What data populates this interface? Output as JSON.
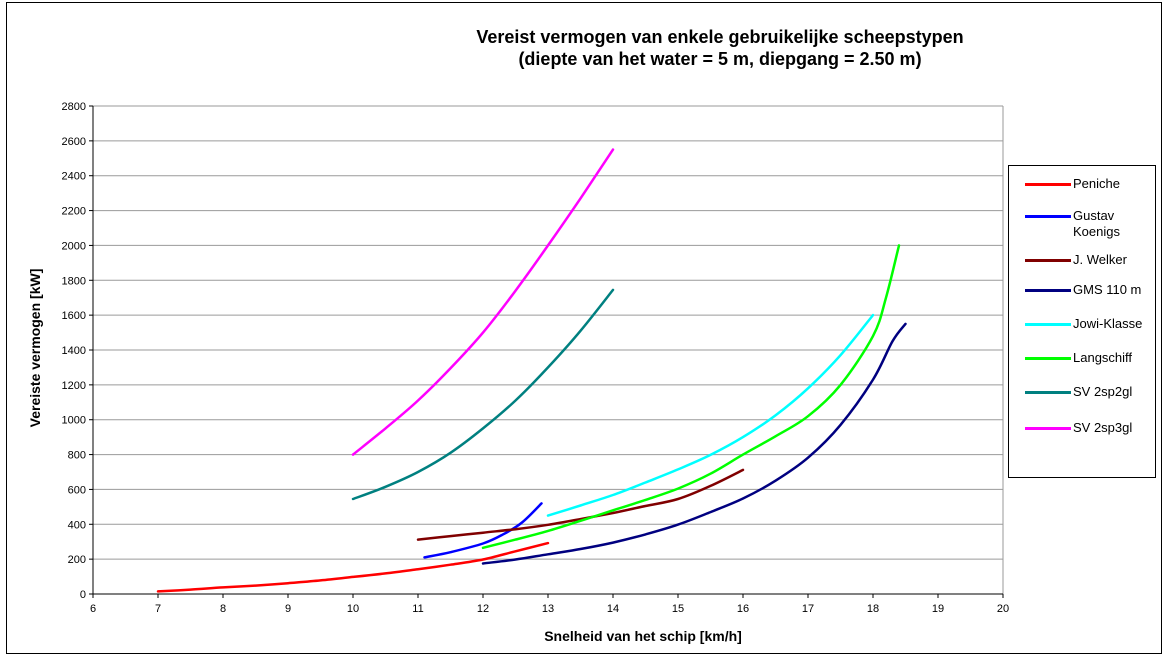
{
  "chart_data": {
    "type": "line",
    "title": "Vereist vermogen van enkele gebruikelijke scheepstypen",
    "subtitle": "(diepte van het water = 5 m, diepgang = 2.50 m)",
    "xlabel": "Snelheid van het schip [km/h]",
    "ylabel": "Vereiste vermogen [kW]",
    "xlim": [
      6,
      20
    ],
    "ylim": [
      0,
      2800
    ],
    "xticks": [
      "6",
      "7",
      "8",
      "9",
      "10",
      "11",
      "12",
      "13",
      "14",
      "15",
      "16",
      "17",
      "18",
      "19",
      "20"
    ],
    "yticks": [
      "0",
      "200",
      "400",
      "600",
      "800",
      "1000",
      "1200",
      "1400",
      "1600",
      "1800",
      "2000",
      "2200",
      "2400",
      "2600",
      "2800"
    ],
    "grid": "horizontal",
    "legend_position": "right",
    "series": [
      {
        "name": "Peniche",
        "color": "#ff0000",
        "points": [
          [
            7,
            15
          ],
          [
            7.5,
            25
          ],
          [
            8,
            38
          ],
          [
            8.5,
            48
          ],
          [
            9,
            62
          ],
          [
            9.5,
            78
          ],
          [
            10,
            98
          ],
          [
            10.5,
            118
          ],
          [
            11,
            142
          ],
          [
            11.5,
            168
          ],
          [
            12,
            198
          ],
          [
            12.5,
            245
          ],
          [
            13,
            292
          ]
        ]
      },
      {
        "name": "Gustav Koenigs",
        "color": "#0000ff",
        "points": [
          [
            11.1,
            210
          ],
          [
            11.5,
            240
          ],
          [
            12,
            290
          ],
          [
            12.3,
            340
          ],
          [
            12.6,
            410
          ],
          [
            12.9,
            520
          ]
        ]
      },
      {
        "name": "J. Welker",
        "color": "#800000",
        "points": [
          [
            11,
            312
          ],
          [
            11.5,
            332
          ],
          [
            12,
            352
          ],
          [
            12.5,
            372
          ],
          [
            13,
            397
          ],
          [
            13.5,
            430
          ],
          [
            14,
            465
          ],
          [
            14.5,
            505
          ],
          [
            15,
            545
          ],
          [
            15.5,
            620
          ],
          [
            16,
            712
          ]
        ]
      },
      {
        "name": "GMS 110 m",
        "color": "#000080",
        "points": [
          [
            12,
            175
          ],
          [
            12.5,
            198
          ],
          [
            13,
            228
          ],
          [
            13.5,
            258
          ],
          [
            14,
            295
          ],
          [
            14.5,
            342
          ],
          [
            15,
            398
          ],
          [
            15.5,
            470
          ],
          [
            16,
            548
          ],
          [
            16.5,
            650
          ],
          [
            17,
            782
          ],
          [
            17.5,
            970
          ],
          [
            18,
            1230
          ],
          [
            18.3,
            1450
          ],
          [
            18.5,
            1550
          ]
        ]
      },
      {
        "name": "Jowi-Klasse",
        "color": "#00ffff",
        "points": [
          [
            13,
            450
          ],
          [
            13.5,
            508
          ],
          [
            14,
            568
          ],
          [
            14.5,
            640
          ],
          [
            15,
            715
          ],
          [
            15.5,
            798
          ],
          [
            16,
            900
          ],
          [
            16.5,
            1025
          ],
          [
            17,
            1180
          ],
          [
            17.5,
            1370
          ],
          [
            18,
            1600
          ]
        ]
      },
      {
        "name": "Langschiff",
        "color": "#00ff00",
        "points": [
          [
            12,
            265
          ],
          [
            12.5,
            312
          ],
          [
            13,
            362
          ],
          [
            13.5,
            420
          ],
          [
            14,
            480
          ],
          [
            14.5,
            540
          ],
          [
            15,
            605
          ],
          [
            15.5,
            690
          ],
          [
            16,
            800
          ],
          [
            16.5,
            905
          ],
          [
            17,
            1020
          ],
          [
            17.5,
            1200
          ],
          [
            18,
            1480
          ],
          [
            18.2,
            1700
          ],
          [
            18.4,
            2000
          ]
        ]
      },
      {
        "name": "SV 2sp2gl",
        "color": "#008080",
        "points": [
          [
            10,
            545
          ],
          [
            10.5,
            615
          ],
          [
            11,
            700
          ],
          [
            11.5,
            810
          ],
          [
            12,
            950
          ],
          [
            12.5,
            1110
          ],
          [
            13,
            1300
          ],
          [
            13.5,
            1510
          ],
          [
            14,
            1745
          ]
        ]
      },
      {
        "name": "SV 2sp3gl",
        "color": "#ff00ff",
        "points": [
          [
            10,
            800
          ],
          [
            10.5,
            950
          ],
          [
            11,
            1110
          ],
          [
            11.5,
            1295
          ],
          [
            12,
            1500
          ],
          [
            12.5,
            1740
          ],
          [
            13,
            2000
          ],
          [
            13.5,
            2270
          ],
          [
            14,
            2550
          ]
        ]
      }
    ]
  }
}
